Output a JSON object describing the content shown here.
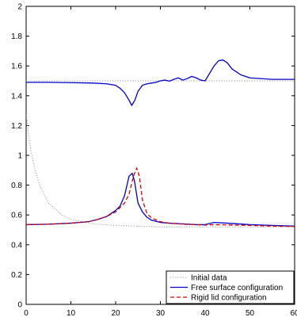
{
  "chart_data": {
    "type": "line",
    "title": "",
    "xlabel": "",
    "ylabel": "",
    "xlim": [
      0,
      60
    ],
    "ylim": [
      0,
      2
    ],
    "xticks": [
      0,
      10,
      20,
      30,
      40,
      50,
      60
    ],
    "yticks": [
      0,
      0.2,
      0.4,
      0.6,
      0.8,
      1,
      1.2,
      1.4,
      1.6,
      1.8,
      2
    ],
    "xtick_labels": [
      "0",
      "10",
      "20",
      "30",
      "40",
      "50",
      "60"
    ],
    "ytick_labels": [
      "0",
      "0.2",
      "0.4",
      "0.6",
      "0.8",
      "1",
      "1.2",
      "1.4",
      "1.6",
      "1.8",
      "2"
    ],
    "grid": false,
    "legend_position": "bottom-right",
    "series": [
      {
        "name": "Initial data",
        "color": "#999999",
        "style": "dotted",
        "segments": [
          {
            "x": [
              0,
              1,
              2,
              3,
              5,
              8,
              10,
              15,
              20,
              25,
              30,
              40,
              50,
              60
            ],
            "y": [
              1.27,
              1.04,
              0.9,
              0.8,
              0.68,
              0.6,
              0.57,
              0.54,
              0.53,
              0.525,
              0.52,
              0.52,
              0.52,
              0.52
            ]
          },
          {
            "x": [
              0,
              60
            ],
            "y": [
              1.5,
              1.5
            ]
          }
        ]
      },
      {
        "name": "Free surface configuration",
        "color": "#0000cc",
        "style": "solid",
        "segments": [
          {
            "x": [
              0,
              5,
              10,
              14,
              16,
              18,
              20,
              21,
              22,
              23,
              23.7,
              24.2,
              25,
              26,
              27,
              28,
              30,
              32,
              35,
              38,
              40,
              42,
              45,
              50,
              55,
              60
            ],
            "y": [
              0.535,
              0.538,
              0.545,
              0.555,
              0.57,
              0.59,
              0.63,
              0.66,
              0.73,
              0.86,
              0.88,
              0.83,
              0.68,
              0.62,
              0.585,
              0.565,
              0.55,
              0.545,
              0.54,
              0.535,
              0.535,
              0.55,
              0.545,
              0.535,
              0.53,
              0.525
            ]
          },
          {
            "x": [
              0,
              5,
              10,
              15,
              18,
              20,
              21,
              22,
              23,
              23.6,
              24.3,
              25,
              26,
              27,
              28,
              29,
              30,
              31,
              32,
              33,
              34,
              35,
              36,
              37,
              38,
              39,
              40,
              41,
              42,
              43,
              44,
              45,
              46,
              48,
              50,
              55,
              60
            ],
            "y": [
              1.49,
              1.49,
              1.488,
              1.485,
              1.48,
              1.47,
              1.45,
              1.42,
              1.37,
              1.335,
              1.37,
              1.43,
              1.47,
              1.48,
              1.485,
              1.49,
              1.5,
              1.505,
              1.498,
              1.51,
              1.52,
              1.505,
              1.515,
              1.53,
              1.52,
              1.505,
              1.5,
              1.55,
              1.6,
              1.635,
              1.64,
              1.62,
              1.58,
              1.54,
              1.52,
              1.51,
              1.51
            ]
          }
        ]
      },
      {
        "name": "Rigid lid configuration",
        "color": "#dd0000",
        "style": "dashed",
        "segments": [
          {
            "x": [
              0,
              5,
              10,
              14,
              16,
              18,
              20,
              21,
              22,
              23,
              24,
              24.7,
              25.3,
              26,
              27,
              28,
              30,
              32,
              35,
              38,
              40,
              42,
              45,
              50,
              55,
              60
            ],
            "y": [
              0.535,
              0.538,
              0.545,
              0.555,
              0.57,
              0.59,
              0.62,
              0.65,
              0.68,
              0.74,
              0.86,
              0.915,
              0.86,
              0.7,
              0.61,
              0.58,
              0.555,
              0.545,
              0.538,
              0.535,
              0.532,
              0.535,
              0.533,
              0.53,
              0.525,
              0.523
            ]
          }
        ]
      }
    ]
  }
}
